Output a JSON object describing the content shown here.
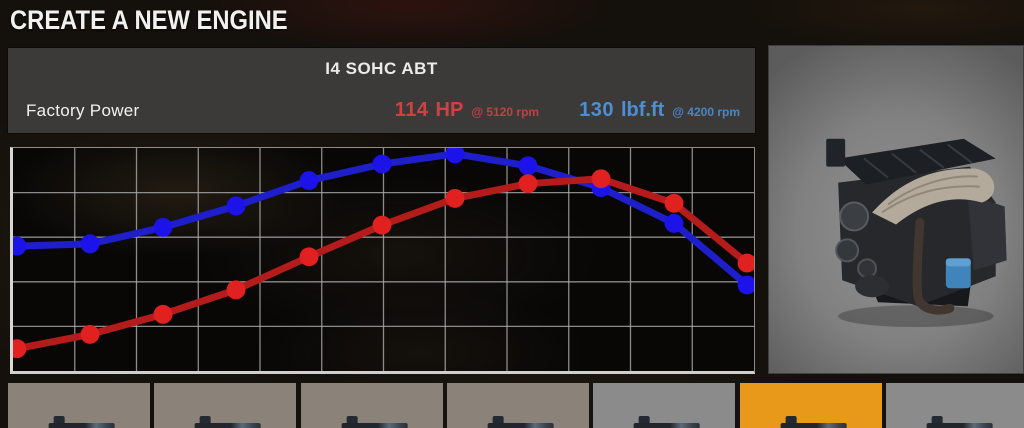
{
  "window": {
    "title": "CREATE A NEW ENGINE"
  },
  "engine_panel": {
    "engine_name": "I4 SOHC ABT",
    "section_label": "Factory Power",
    "power": {
      "value": "114",
      "unit": "HP",
      "at_rpm": "@ 5120 rpm",
      "color": "#cd4343"
    },
    "torque": {
      "value": "130",
      "unit": "lbf.ft",
      "at_rpm": "@ 4200 rpm",
      "color": "#4d8fd4"
    }
  },
  "chart_data": {
    "type": "line",
    "title": "",
    "xlabel": "",
    "ylabel": "",
    "axis_tick_labels_visible": false,
    "legend_position": "none",
    "grid": {
      "cols": 12,
      "rows": 5,
      "visible": true
    },
    "x_index": [
      1,
      2,
      3,
      4,
      5,
      6,
      7,
      8,
      9,
      10,
      11
    ],
    "ylim_grid_units": [
      0,
      5
    ],
    "series": [
      {
        "name": "Torque",
        "unit": "lbf.ft",
        "line_color": "#1e1fca",
        "dot_color": "#1c13ea",
        "values_grid_units": [
          2.8,
          2.85,
          3.22,
          3.7,
          4.27,
          4.64,
          4.87,
          4.6,
          4.11,
          3.31,
          1.93
        ],
        "estimated_values": [
          75,
          76,
          86,
          99,
          114,
          124,
          130,
          123,
          110,
          88,
          52
        ],
        "peak": {
          "value": 130,
          "unit": "lbf.ft",
          "rpm": 4200
        }
      },
      {
        "name": "Power",
        "unit": "HP",
        "line_color": "#b41b1b",
        "dot_color": "#e12020",
        "values_grid_units": [
          0.5,
          0.82,
          1.27,
          1.82,
          2.56,
          3.27,
          3.87,
          4.2,
          4.31,
          3.76,
          2.42
        ],
        "estimated_values": [
          13,
          22,
          34,
          48,
          68,
          86,
          102,
          111,
          114,
          99,
          64
        ],
        "peak": {
          "value": 114,
          "unit": "HP",
          "rpm": 5120
        }
      }
    ]
  },
  "icons": {
    "engine_preview": "engine-3d-render",
    "thumbnail_silhouette": "engine-top-silhouette"
  },
  "thumbnails": {
    "selected_index": 5,
    "highlight_color": "#e8991a",
    "items": [
      {
        "id": 1
      },
      {
        "id": 2
      },
      {
        "id": 3
      },
      {
        "id": 4
      },
      {
        "id": 5
      },
      {
        "id": 6
      },
      {
        "id": 7
      }
    ]
  }
}
